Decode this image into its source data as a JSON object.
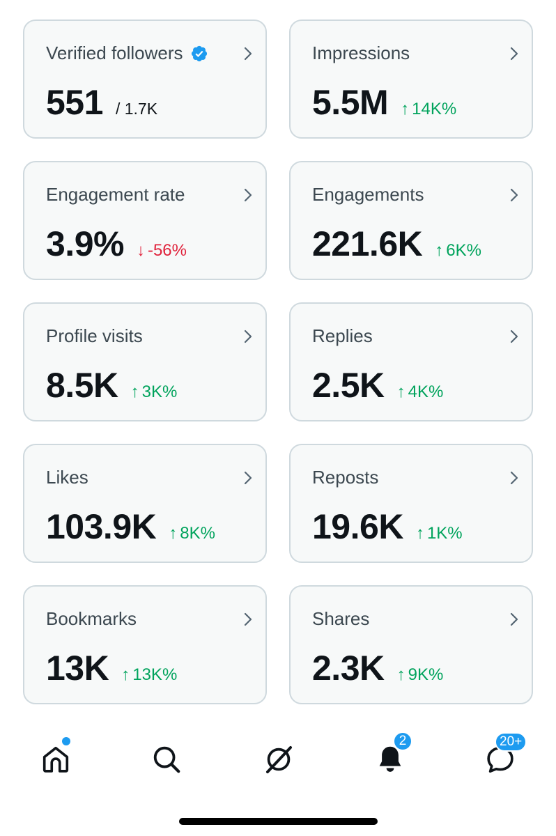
{
  "colors": {
    "up": "#00a35c",
    "down": "#e0243d",
    "accent": "#1d9bf0"
  },
  "cards": [
    {
      "title": "Verified followers",
      "value": "551",
      "sub": "/ 1.7K",
      "change": "",
      "direction": ""
    },
    {
      "title": "Impressions",
      "value": "5.5M",
      "sub": "",
      "change": "14K%",
      "direction": "up"
    },
    {
      "title": "Engagement rate",
      "value": "3.9%",
      "sub": "",
      "change": "-56%",
      "direction": "down"
    },
    {
      "title": "Engagements",
      "value": "221.6K",
      "sub": "",
      "change": "6K%",
      "direction": "up"
    },
    {
      "title": "Profile visits",
      "value": "8.5K",
      "sub": "",
      "change": "3K%",
      "direction": "up"
    },
    {
      "title": "Replies",
      "value": "2.5K",
      "sub": "",
      "change": "4K%",
      "direction": "up"
    },
    {
      "title": "Likes",
      "value": "103.9K",
      "sub": "",
      "change": "8K%",
      "direction": "up"
    },
    {
      "title": "Reposts",
      "value": "19.6K",
      "sub": "",
      "change": "1K%",
      "direction": "up"
    },
    {
      "title": "Bookmarks",
      "value": "13K",
      "sub": "",
      "change": "13K%",
      "direction": "up"
    },
    {
      "title": "Shares",
      "value": "2.3K",
      "sub": "",
      "change": "9K%",
      "direction": "up"
    }
  ],
  "nav": {
    "items": [
      "home-icon",
      "search-icon",
      "grok-icon",
      "bell-icon",
      "messages-icon"
    ],
    "notifications_badge": "2",
    "messages_badge": "20+"
  }
}
